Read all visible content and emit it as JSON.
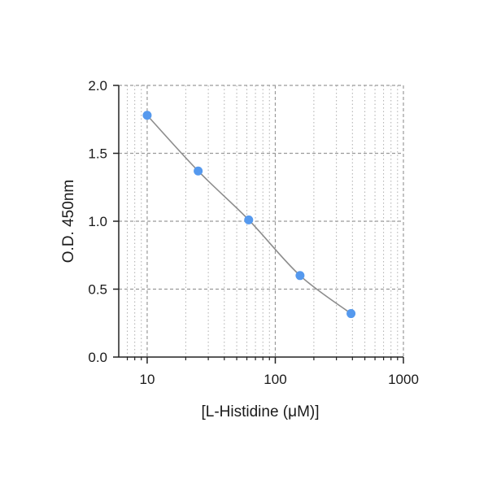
{
  "chart_data": {
    "type": "scatter",
    "title": "",
    "xlabel": "[L-Histidine (μM)]",
    "ylabel": "O.D. 450nm",
    "xscale": "log",
    "xlim": [
      6,
      1000
    ],
    "ylim": [
      0.0,
      2.0
    ],
    "x_ticks": [
      10,
      100,
      1000
    ],
    "x_tick_labels": [
      "10",
      "100",
      "1000"
    ],
    "y_ticks": [
      0.0,
      0.5,
      1.0,
      1.5,
      2.0
    ],
    "y_tick_labels": [
      "0.0",
      "0.5",
      "1.0",
      "1.5",
      "2.0"
    ],
    "grid": true,
    "legend": "none",
    "series": [
      {
        "x": [
          10,
          25,
          62,
          156,
          390
        ],
        "y": [
          1.78,
          1.37,
          1.01,
          0.6,
          0.32
        ]
      }
    ],
    "colors": {
      "points": "#5599ee",
      "curve": "#8c8c8c",
      "grid": "#9a9a9a",
      "axis": "#222222"
    }
  }
}
